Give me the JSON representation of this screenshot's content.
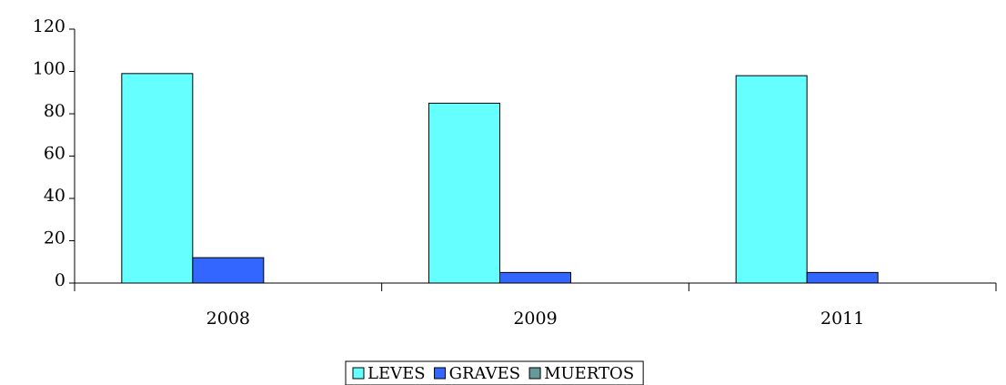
{
  "chart_data": {
    "type": "bar",
    "categories": [
      "2008",
      "2009",
      "2011"
    ],
    "series": [
      {
        "name": "LEVES",
        "color": "#66ffff",
        "values": [
          99,
          85,
          98
        ]
      },
      {
        "name": "GRAVES",
        "color": "#3366ff",
        "values": [
          12,
          5,
          5
        ]
      },
      {
        "name": "MUERTOS",
        "color": "#669999",
        "values": [
          0,
          0,
          0
        ]
      }
    ],
    "ylim": [
      0,
      120
    ],
    "yticks": [
      0,
      20,
      40,
      60,
      80,
      100,
      120
    ],
    "grid": false,
    "legend": "bottom"
  }
}
